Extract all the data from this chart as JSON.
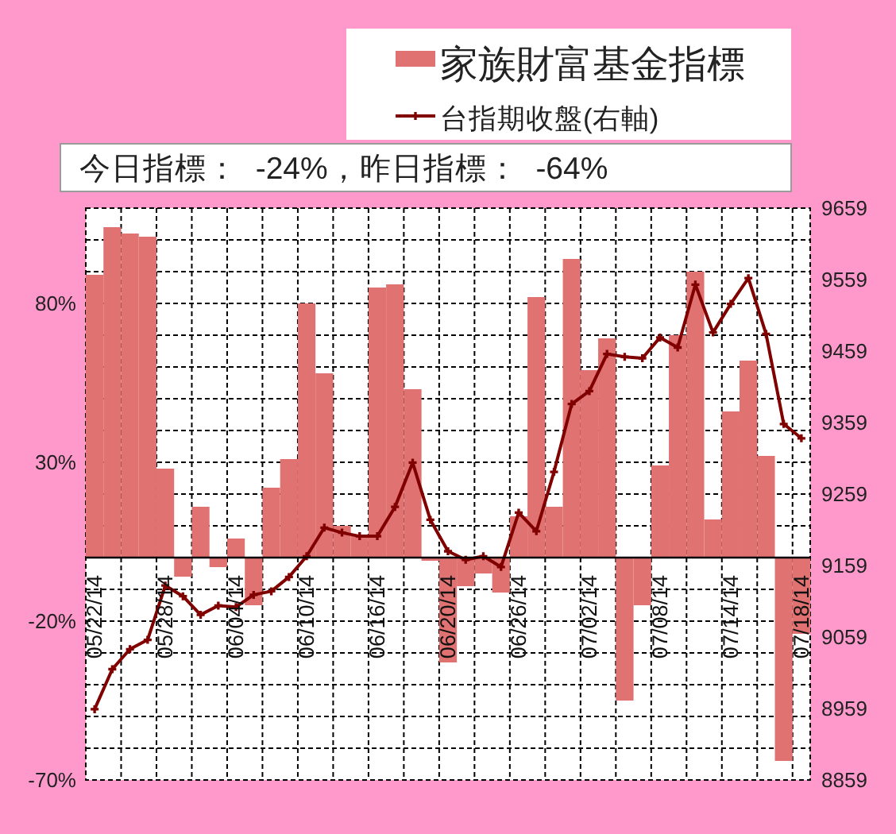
{
  "chart_data": {
    "type": "bar",
    "subtitle": "今日指標：  -24%，昨日指標：  -64%",
    "categories": [
      "05/22/14",
      null,
      null,
      null,
      "05/28/14",
      null,
      null,
      null,
      "06/04/14",
      null,
      null,
      null,
      "06/10/14",
      null,
      null,
      null,
      "06/16/14",
      null,
      null,
      null,
      "06/20/14",
      null,
      null,
      null,
      "06/26/14",
      null,
      null,
      null,
      "07/02/14",
      null,
      null,
      null,
      "07/08/14",
      null,
      null,
      null,
      "07/14/14",
      null,
      null,
      null,
      "07/18/14"
    ],
    "series": [
      {
        "name": "家族財富基金指標",
        "color": "#e07272",
        "values": [
          89,
          104,
          102,
          101,
          28,
          -6,
          16,
          -3,
          6,
          -15,
          22,
          31,
          80,
          58,
          10,
          7,
          85,
          86,
          53,
          -1,
          -33,
          -9,
          -5,
          -11,
          13,
          82,
          16,
          94,
          59,
          69,
          -45,
          -15,
          29,
          70,
          90,
          12,
          46,
          62,
          32,
          -64,
          -24
        ]
      },
      {
        "name": "台指期收盤(右軸)",
        "type": "line",
        "axis": "y2",
        "color": "#800000",
        "marker": "cross",
        "values": [
          8958,
          9014,
          9042,
          9055,
          9131,
          9116,
          9090,
          9103,
          9101,
          9118,
          9123,
          9143,
          9172,
          9212,
          9205,
          9200,
          9200,
          9241,
          9303,
          9223,
          9179,
          9167,
          9172,
          9157,
          9233,
          9207,
          9290,
          9385,
          9403,
          9455,
          9451,
          9449,
          9478,
          9464,
          9552,
          9485,
          9525,
          9561,
          9483,
          9357,
          9337
        ]
      }
    ],
    "ylim": [
      -70,
      110
    ],
    "yticks": [
      {
        "value": -70,
        "label": "-70%"
      },
      {
        "value": -60,
        "label": null
      },
      {
        "value": -50,
        "label": null
      },
      {
        "value": -40,
        "label": null
      },
      {
        "value": -30,
        "label": null
      },
      {
        "value": -20,
        "label": "-20%"
      },
      {
        "value": -10,
        "label": null
      },
      {
        "value": 0,
        "label": null
      },
      {
        "value": 10,
        "label": null
      },
      {
        "value": 20,
        "label": null
      },
      {
        "value": 30,
        "label": "30%"
      },
      {
        "value": 40,
        "label": null
      },
      {
        "value": 50,
        "label": null
      },
      {
        "value": 60,
        "label": null
      },
      {
        "value": 70,
        "label": null
      },
      {
        "value": 80,
        "label": "80%"
      },
      {
        "value": 90,
        "label": null
      },
      {
        "value": 100,
        "label": null
      }
    ],
    "y2lim": [
      8859,
      9659
    ],
    "y2ticks": [
      8859,
      8959,
      9059,
      9159,
      9259,
      9359,
      9459,
      9559,
      9659
    ],
    "grid": true,
    "legend": "top right"
  }
}
